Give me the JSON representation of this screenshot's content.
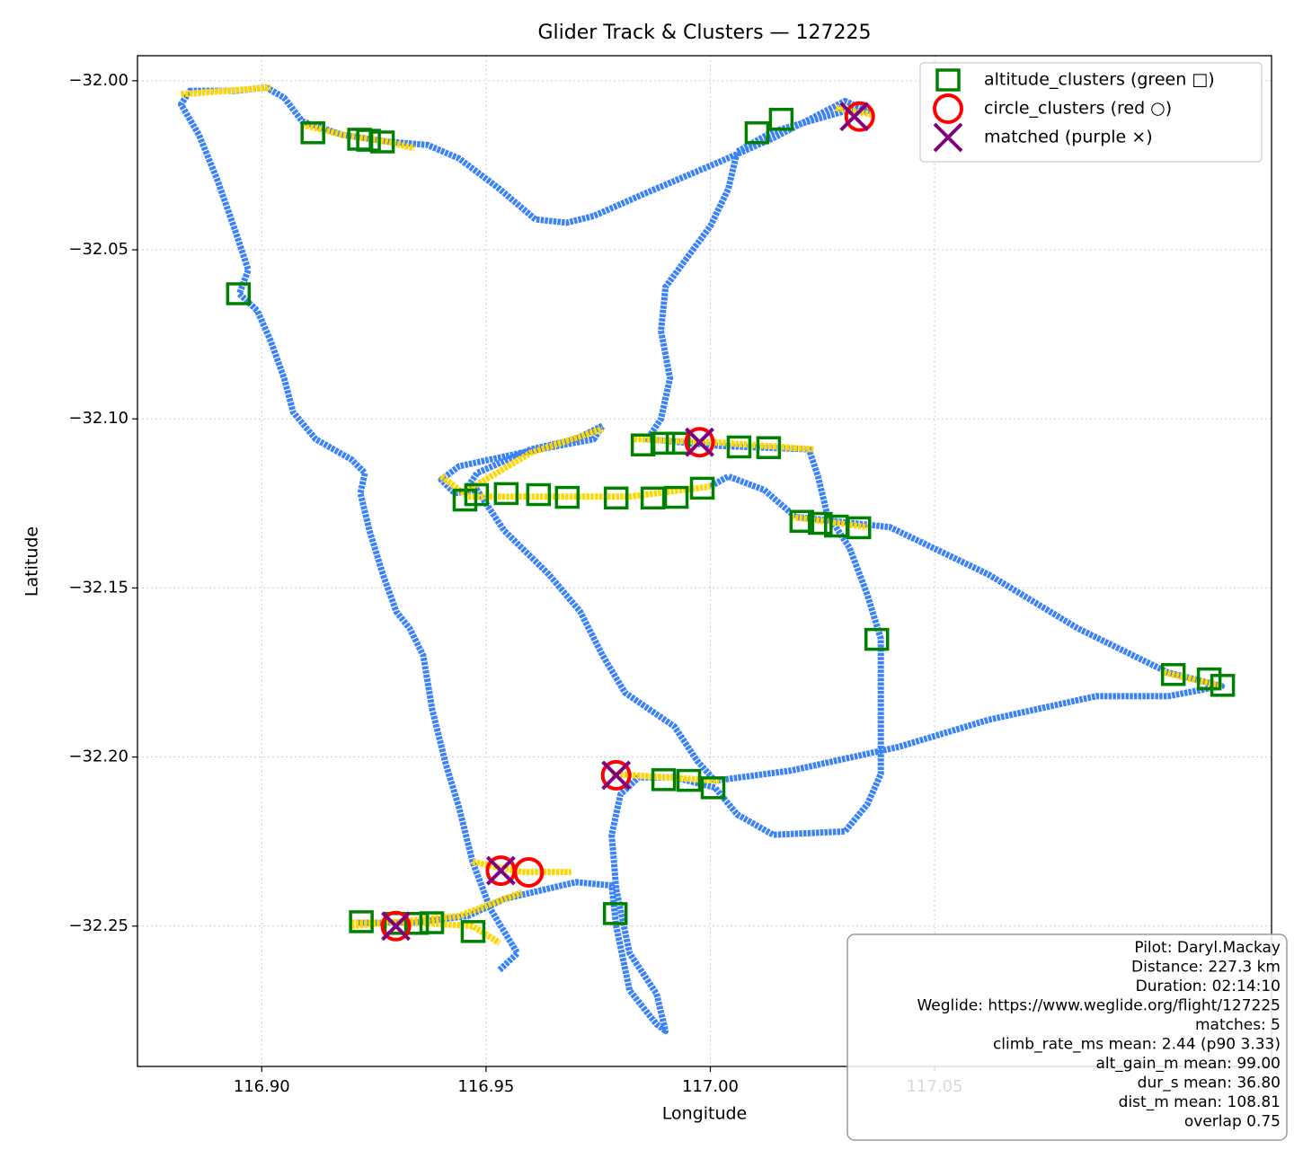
{
  "chart_data": {
    "type": "scatter",
    "title": "Glider Track & Clusters — 127225",
    "x_label": "Longitude",
    "y_label": "Latitude",
    "xlim": [
      116.8723,
      117.1251
    ],
    "ylim": [
      -32.2915,
      -31.9926
    ],
    "xticks": [
      {
        "value": 116.9,
        "label": "116.90"
      },
      {
        "value": 116.95,
        "label": "116.95"
      },
      {
        "value": 117.0,
        "label": "117.00"
      },
      {
        "value": 117.05,
        "label": "117.05"
      }
    ],
    "yticks": [
      {
        "value": -32.0,
        "label": "−32.00"
      },
      {
        "value": -32.05,
        "label": "−32.05"
      },
      {
        "value": -32.1,
        "label": "−32.10"
      },
      {
        "value": -32.15,
        "label": "−32.15"
      },
      {
        "value": -32.2,
        "label": "−32.20"
      },
      {
        "value": -32.25,
        "label": "−32.25"
      }
    ],
    "grid": true,
    "legend": "upper right",
    "track": {
      "color": "#3b82f6",
      "x": [
        116.953,
        116.957,
        116.951,
        116.947,
        116.944,
        116.941,
        116.938,
        116.936,
        116.933,
        116.93,
        116.927,
        116.924,
        116.922,
        116.923,
        116.92,
        116.912,
        116.907,
        116.905,
        116.902,
        116.899,
        116.895,
        116.897,
        116.894,
        116.89,
        116.886,
        116.882,
        116.884,
        116.894,
        116.901,
        116.905,
        116.909,
        116.918,
        116.928,
        116.937,
        116.944,
        116.953,
        116.961,
        116.968,
        116.974,
        116.986,
        117.002,
        117.014,
        117.03,
        117.035,
        117.03,
        117.014,
        117.006,
        117.004,
        117.0,
        116.99,
        116.989,
        116.991,
        116.989,
        116.986,
        117.002,
        117.022,
        117.024,
        117.026,
        117.031,
        117.035,
        117.038,
        117.038,
        117.038,
        117.035,
        117.03,
        117.014,
        117.006,
        117.001,
        116.992,
        116.984,
        116.98,
        116.978,
        116.979,
        116.982,
        116.988,
        116.99,
        116.988,
        116.982,
        116.979,
        116.978,
        116.97,
        116.954,
        116.946,
        116.934,
        116.921,
        null,
        117.0,
        117.004,
        117.012,
        117.019,
        117.04,
        117.062,
        117.082,
        117.102,
        117.114,
        117.102,
        117.086,
        117.062,
        117.042,
        117.018,
        117.001,
        null,
        116.946,
        116.948,
        116.96,
        116.97,
        116.976,
        116.974,
        116.958,
        116.944,
        116.94,
        116.943,
        116.948,
        116.954,
        116.964,
        116.971,
        116.976,
        116.981,
        116.992,
        116.997,
        117.001
      ],
      "y": [
        -32.263,
        -32.258,
        -32.245,
        -32.231,
        -32.215,
        -32.202,
        -32.186,
        -32.17,
        -32.162,
        -32.157,
        -32.146,
        -32.133,
        -32.122,
        -32.116,
        -32.112,
        -32.106,
        -32.098,
        -32.088,
        -32.077,
        -32.068,
        -32.063,
        -32.056,
        -32.044,
        -32.029,
        -32.016,
        -32.007,
        -32.003,
        -32.003,
        -32.002,
        -32.005,
        -32.012,
        -32.016,
        -32.018,
        -32.019,
        -32.023,
        -32.032,
        -32.041,
        -32.042,
        -32.04,
        -32.033,
        -32.024,
        -32.017,
        -32.006,
        -32.009,
        -32.009,
        -32.015,
        -32.021,
        -32.032,
        -32.043,
        -32.061,
        -32.074,
        -32.088,
        -32.1,
        -32.106,
        -32.108,
        -32.109,
        -32.117,
        -32.128,
        -32.138,
        -32.152,
        -32.165,
        -32.184,
        -32.205,
        -32.214,
        -32.222,
        -32.223,
        -32.217,
        -32.209,
        -32.206,
        -32.206,
        -32.211,
        -32.223,
        -32.239,
        -32.258,
        -32.27,
        -32.281,
        -32.279,
        -32.269,
        -32.25,
        -32.238,
        -32.237,
        -32.242,
        -32.247,
        -32.249,
        -32.249,
        null,
        -32.12,
        -32.117,
        -32.121,
        -32.129,
        -32.132,
        -32.146,
        -32.162,
        -32.175,
        -32.179,
        -32.182,
        -32.182,
        -32.189,
        -32.197,
        -32.204,
        -32.207,
        null,
        -32.12,
        -32.116,
        -32.109,
        -32.106,
        -32.102,
        -32.106,
        -32.11,
        -32.114,
        -32.118,
        -32.122,
        -32.121,
        -32.133,
        -32.146,
        -32.157,
        -32.17,
        -32.181,
        -32.191,
        -32.201,
        -32.207
      ]
    },
    "climb": {
      "color": "#ffd700",
      "x": [
        116.882,
        116.902,
        null,
        116.909,
        116.918,
        116.928,
        116.934,
        null,
        117.028,
        117.036,
        null,
        116.983,
        117.002,
        117.023,
        null,
        116.94,
        116.946,
        116.962,
        116.982,
        117.0,
        null,
        116.946,
        116.96,
        116.976,
        null,
        117.018,
        117.035,
        null,
        117.101,
        117.114,
        null,
        116.978,
        116.99,
        117.002,
        null,
        116.947,
        116.958,
        116.969,
        null,
        116.92,
        116.935,
        116.947,
        116.953,
        null,
        116.92,
        116.944,
        116.958
      ],
      "y": [
        -32.004,
        -32.002,
        null,
        -32.013,
        -32.016,
        -32.018,
        -32.02,
        null,
        -32.008,
        -32.01,
        null,
        -32.106,
        -32.107,
        -32.109,
        null,
        -32.117,
        -32.123,
        -32.123,
        -32.123,
        -32.12,
        null,
        -32.121,
        -32.11,
        -32.103,
        null,
        -32.129,
        -32.132,
        null,
        -32.175,
        -32.179,
        null,
        -32.205,
        -32.206,
        -32.207,
        null,
        -32.231,
        -32.234,
        -32.234,
        null,
        -32.249,
        -32.249,
        -32.25,
        -32.255,
        null,
        -32.25,
        -32.247,
        -32.24
      ]
    },
    "series": [
      {
        "name": "altitude_clusters (green □)",
        "color": "#008000",
        "marker": "square",
        "x": [
          116.9114,
          116.9218,
          116.9238,
          116.9269,
          116.8948,
          117.0104,
          117.0158,
          116.9453,
          116.9479,
          116.9545,
          116.9617,
          116.9681,
          116.979,
          116.9872,
          116.9924,
          116.9982,
          116.985,
          116.9894,
          116.9928,
          117.0064,
          117.013,
          117.0204,
          117.0245,
          117.0281,
          117.0331,
          117.0371,
          117.1032,
          117.1112,
          117.1142,
          116.9896,
          116.9952,
          117.0006,
          116.9788,
          116.9222,
          116.9299,
          116.9345,
          116.9379,
          116.9471
        ],
        "y": [
          -32.0154,
          -32.0173,
          -32.0176,
          -32.0181,
          -32.063,
          -32.0154,
          -32.0114,
          -32.124,
          -32.1224,
          -32.1221,
          -32.1224,
          -32.1232,
          -32.1234,
          -32.1234,
          -32.1232,
          -32.1205,
          -32.1077,
          -32.1072,
          -32.1072,
          -32.1083,
          -32.1085,
          -32.1303,
          -32.1309,
          -32.1317,
          -32.1322,
          -32.1652,
          -32.1756,
          -32.1769,
          -32.1788,
          -32.2067,
          -32.2069,
          -32.2091,
          -32.2463,
          -32.2487,
          -32.2492,
          -32.2492,
          -32.249,
          -32.2516
        ]
      },
      {
        "name": "circle_clusters (red ○)",
        "color": "#ff0000",
        "marker": "circle",
        "x": [
          117.0333,
          116.9976,
          116.979,
          116.9533,
          116.9595,
          116.9299
        ],
        "y": [
          -32.0106,
          -32.1069,
          -32.2054,
          -32.2336,
          -32.2341,
          -32.25
        ]
      },
      {
        "name": "matched (purple ×)",
        "color": "#800080",
        "marker": "x",
        "x": [
          117.0321,
          116.9976,
          116.979,
          116.9533,
          116.9299
        ],
        "y": [
          -32.0106,
          -32.1069,
          -32.2054,
          -32.2336,
          -32.25
        ]
      }
    ],
    "annotations": [
      "Pilot: Daryl.Mackay",
      "Distance: 227.3 km",
      "Duration: 02:14:10",
      "Weglide: https://www.weglide.org/flight/127225",
      "matches: 5",
      "climb_rate_ms mean: 2.44 (p90 3.33)",
      "alt_gain_m mean: 99.00",
      "dur_s mean: 36.80",
      "dist_m mean: 108.81",
      "overlap 0.75"
    ]
  }
}
